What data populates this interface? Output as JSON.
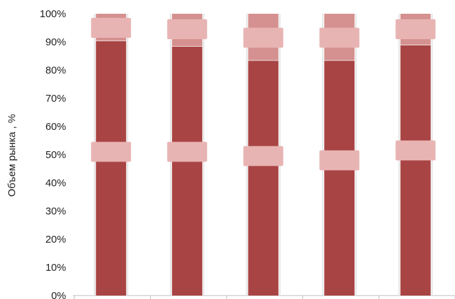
{
  "chart_data": {
    "type": "bar",
    "stacked": true,
    "percent": true,
    "xlabel": "",
    "ylabel": "Объем рынка , %",
    "ylim": [
      0,
      100
    ],
    "yticks": [
      "0%",
      "10%",
      "20%",
      "30%",
      "40%",
      "50%",
      "60%",
      "70%",
      "80%",
      "90%",
      "100%"
    ],
    "categories": [
      "",
      "",
      "",
      "",
      ""
    ],
    "series": [
      {
        "values": [
          90.5,
          88.5,
          83.5,
          83.5,
          89
        ],
        "color": "#a94444"
      },
      {
        "values": [
          9.5,
          11.5,
          16.5,
          16.5,
          11
        ],
        "color": "#d4918f"
      }
    ],
    "labels": [
      {
        "series": 0,
        "values": [
          51,
          51,
          49.5,
          48,
          51.5
        ],
        "color": "#e8b4b3"
      },
      {
        "series": 1,
        "values": [
          95,
          94.5,
          91.5,
          91.5,
          94.5
        ],
        "color": "#e8b4b3"
      }
    ],
    "grid": false,
    "legend": "none"
  }
}
